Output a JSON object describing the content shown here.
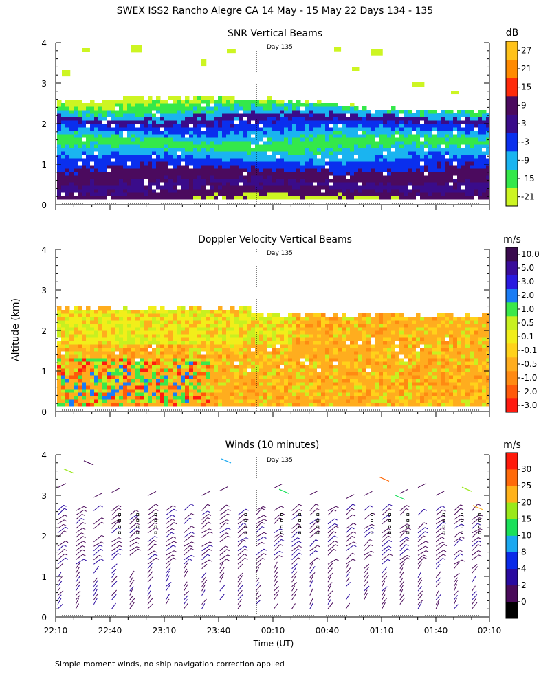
{
  "figure": {
    "title": "SWEX ISS2 Rancho Alegre CA  14 May - 15 May 22 Days 134 - 135",
    "ylabel": "Altitude (km)",
    "xlabel": "Time (UT)",
    "footnote": "Simple moment winds, no ship navigation correction applied",
    "day_marker_label": "Day 135"
  },
  "chart_data": [
    {
      "type": "heatmap",
      "title": "SNR Vertical Beams",
      "colorbar_unit": "dB",
      "colorbar_ticks": [
        "27",
        "21",
        "15",
        "9",
        "3",
        "-3",
        "-9",
        "-15",
        "-21"
      ],
      "colorbar_colors": [
        "#cdf522",
        "#34e84a",
        "#1ab4f0",
        "#0a2fee",
        "#3a0c8a",
        "#4b0a5e",
        "#ff2a0a",
        "#ff8a00",
        "#ffc21a"
      ],
      "x_range_hours_utc": [
        "22:10",
        "02:10"
      ],
      "ylim_km": [
        0,
        4
      ],
      "yticks": [
        "0",
        "1",
        "2",
        "3",
        "4"
      ],
      "grid": false,
      "day_boundary": "00:00"
    },
    {
      "type": "heatmap",
      "title": "Doppler Velocity Vertical Beams",
      "colorbar_unit": "m/s",
      "colorbar_ticks": [
        "10.0",
        "5.0",
        "3.0",
        "2.0",
        "1.0",
        "0.5",
        "0.1",
        "-0.1",
        "-0.5",
        "-1.0",
        "-2.0",
        "-3.0"
      ],
      "colorbar_colors": [
        "#ff1a10",
        "#ff5a0a",
        "#ff8a12",
        "#ffad1e",
        "#ffd21a",
        "#f2ee1a",
        "#c8f020",
        "#3be84a",
        "#1a7cf5",
        "#2a1ae0",
        "#3a0c9a",
        "#3a0a4e"
      ],
      "x_range_hours_utc": [
        "22:10",
        "02:10"
      ],
      "ylim_km": [
        0,
        4
      ],
      "yticks": [
        "0",
        "1",
        "2",
        "3",
        "4"
      ],
      "grid": false,
      "day_boundary": "00:00"
    },
    {
      "type": "scatter",
      "title": "Winds (10 minutes)",
      "colorbar_unit": "m/s",
      "colorbar_ticks": [
        "30",
        "25",
        "20",
        "15",
        "10",
        "8",
        "4",
        "2",
        "0"
      ],
      "colorbar_colors": [
        "#000000",
        "#4a0a5a",
        "#2a0aa0",
        "#0a2ae8",
        "#1aa8f0",
        "#1ae05a",
        "#9ae81a",
        "#ffb21a",
        "#ff6a0a",
        "#ff1a0a"
      ],
      "xticks": [
        "22:10",
        "22:40",
        "23:10",
        "23:40",
        "00:10",
        "00:40",
        "01:10",
        "01:40",
        "02:10"
      ],
      "ylim_km": [
        0,
        4
      ],
      "yticks": [
        "0",
        "1",
        "2",
        "3",
        "4"
      ],
      "profiles_every_minutes": 10,
      "grid": false,
      "day_boundary": "00:00"
    }
  ]
}
